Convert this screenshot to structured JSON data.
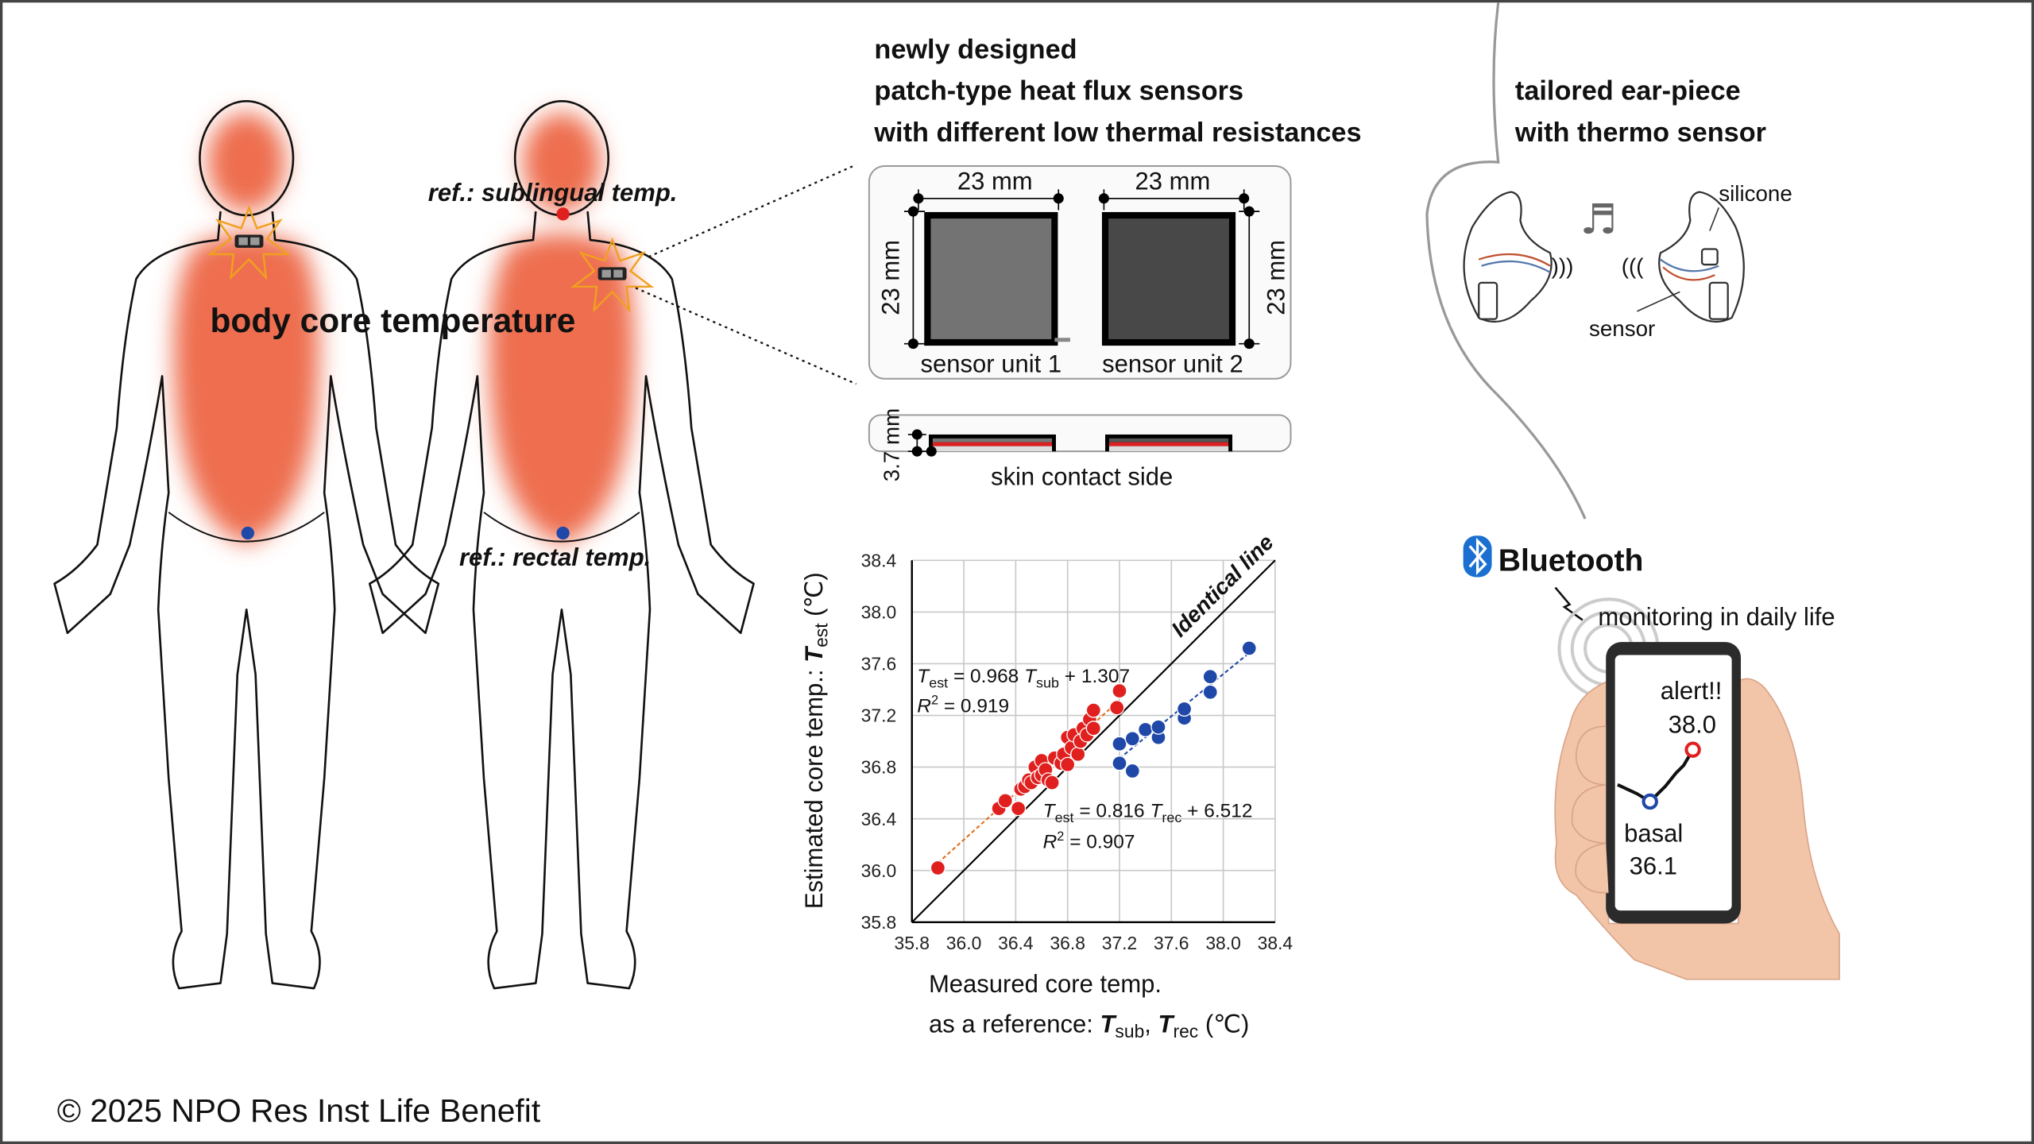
{
  "colors": {
    "body_heat": "#ee6e4f",
    "sub_series": "#e0201e",
    "rec_series": "#1f48a8",
    "bluetooth": "#1a6fd0",
    "frame": "#444444"
  },
  "body": {
    "title": "body core temperature",
    "ref_sublingual": "ref.: sublingual temp.",
    "ref_rectal": "ref.: rectal temp."
  },
  "sensor": {
    "heading": [
      "newly designed",
      "patch-type heat flux sensors",
      "with different low thermal resistances"
    ],
    "dim_width_1": "23 mm",
    "dim_width_2": "23 mm",
    "dim_height_1": "23 mm",
    "dim_height_2": "23 mm",
    "unit1": "sensor unit 1",
    "unit2": "sensor unit 2",
    "thickness": "3.7 mm",
    "skin_side": "skin contact side"
  },
  "earpiece": {
    "heading": [
      "tailored ear-piece",
      "with thermo sensor"
    ],
    "silicone": "silicone",
    "sensor": "sensor",
    "music_icon": "music-note-icon"
  },
  "phone": {
    "bluetooth": "Bluetooth",
    "monitoring": "monitoring in daily life",
    "alert": "alert!!",
    "alert_value": "38.0",
    "basal": "basal",
    "basal_value": "36.1"
  },
  "copyright": "© 2025 NPO Res Inst Life Benefit",
  "chart_data": {
    "type": "scatter",
    "ylabel": {
      "prefix": "Estimated core temp.: ",
      "var": "T",
      "sub": "est",
      "unit": " (℃)"
    },
    "xlabel": {
      "line1": "Measured core temp.",
      "line2_prefix": "as a reference: ",
      "v1": "T",
      "s1": "sub",
      "sep": ", ",
      "v2": "T",
      "s2": "rec",
      "unit": " (℃)"
    },
    "xlim": [
      35.8,
      38.4
    ],
    "ylim": [
      35.8,
      38.4
    ],
    "xticks": [
      "35.8",
      "36.0",
      "36.4",
      "36.8",
      "37.2",
      "37.6",
      "38.0",
      "38.4"
    ],
    "yticks": [
      "35.8",
      "36.0",
      "36.4",
      "36.8",
      "37.2",
      "37.6",
      "38.0",
      "38.4"
    ],
    "grid": true,
    "identity_label": "Identical line",
    "series": [
      {
        "key": "sub",
        "color": "#e0201e",
        "eq": {
          "lhs": "T",
          "lhs_sub": "est",
          "mid": " = 0.968 ",
          "v": "T",
          "v_sub": "sub",
          "rhs": " + 1.307",
          "r2_label": "R",
          "r2_value": " = 0.919"
        },
        "fit": {
          "slope": 0.968,
          "intercept": 1.307,
          "x": [
            35.9,
            37.2
          ]
        },
        "points": [
          [
            35.9,
            36.02
          ],
          [
            36.27,
            36.48
          ],
          [
            36.32,
            36.54
          ],
          [
            36.42,
            36.48
          ],
          [
            36.44,
            36.63
          ],
          [
            36.47,
            36.65
          ],
          [
            36.5,
            36.7
          ],
          [
            36.52,
            36.68
          ],
          [
            36.55,
            36.8
          ],
          [
            36.57,
            36.72
          ],
          [
            36.6,
            36.85
          ],
          [
            36.6,
            36.74
          ],
          [
            36.63,
            36.78
          ],
          [
            36.65,
            36.7
          ],
          [
            36.68,
            36.68
          ],
          [
            36.7,
            36.87
          ],
          [
            36.75,
            36.83
          ],
          [
            36.77,
            36.9
          ],
          [
            36.8,
            37.03
          ],
          [
            36.8,
            36.82
          ],
          [
            36.83,
            36.95
          ],
          [
            36.85,
            37.05
          ],
          [
            36.88,
            36.9
          ],
          [
            36.9,
            37.0
          ],
          [
            36.92,
            37.1
          ],
          [
            36.95,
            37.05
          ],
          [
            36.97,
            37.17
          ],
          [
            37.0,
            37.24
          ],
          [
            37.0,
            37.1
          ],
          [
            37.18,
            37.26
          ],
          [
            37.2,
            37.39
          ]
        ]
      },
      {
        "key": "rec",
        "color": "#1f48a8",
        "eq": {
          "lhs": "T",
          "lhs_sub": "est",
          "mid": " = 0.816 ",
          "v": "T",
          "v_sub": "rec",
          "rhs": " + 6.512",
          "r2_label": "R",
          "r2_value": " = 0.907"
        },
        "fit": {
          "slope": 0.816,
          "intercept": 6.512,
          "x": [
            37.2,
            38.2
          ]
        },
        "points": [
          [
            37.2,
            36.98
          ],
          [
            37.2,
            36.83
          ],
          [
            37.3,
            37.02
          ],
          [
            37.3,
            36.77
          ],
          [
            37.4,
            37.09
          ],
          [
            37.5,
            37.03
          ],
          [
            37.5,
            37.11
          ],
          [
            37.7,
            37.18
          ],
          [
            37.7,
            37.25
          ],
          [
            37.9,
            37.38
          ],
          [
            37.9,
            37.5
          ],
          [
            38.2,
            37.72
          ]
        ]
      }
    ]
  }
}
